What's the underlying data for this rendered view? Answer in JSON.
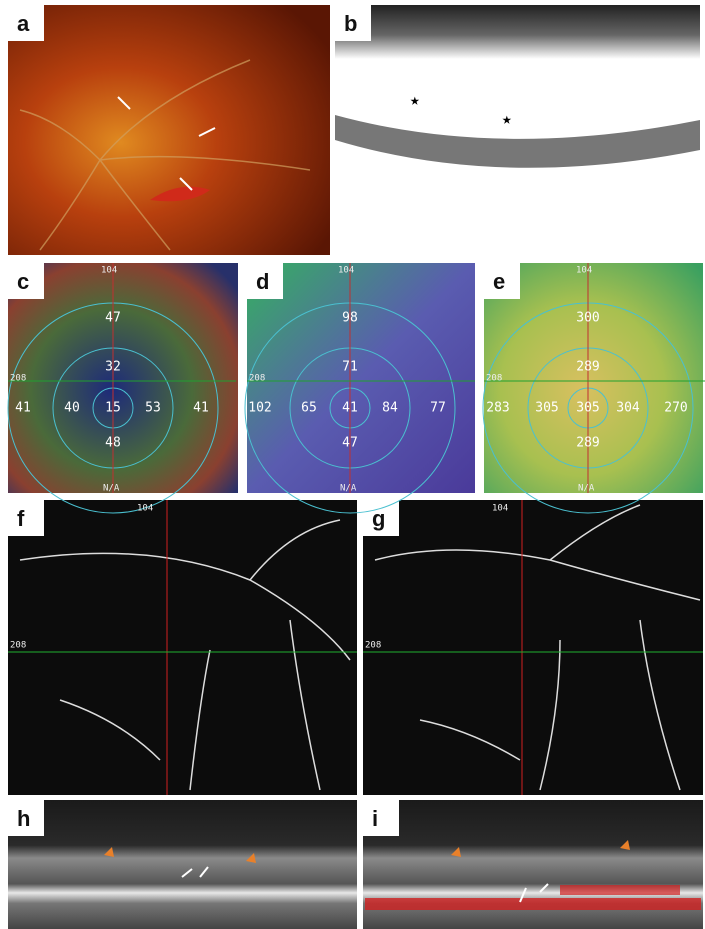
{
  "labels": [
    "a",
    "b",
    "c",
    "d",
    "e",
    "f",
    "g",
    "h",
    "i"
  ],
  "maps": [
    {
      "top": "104",
      "left": "208",
      "bottom": "N/A",
      "values": [
        47,
        32,
        41,
        40,
        15,
        53,
        41,
        48
      ]
    },
    {
      "top": "104",
      "left": "208",
      "bottom": "N/A",
      "values": [
        98,
        71,
        102,
        65,
        41,
        84,
        77,
        47
      ]
    },
    {
      "top": "104",
      "left": "208",
      "bottom": "N/A",
      "values": [
        300,
        289,
        283,
        305,
        305,
        304,
        270,
        289
      ]
    }
  ],
  "octa": [
    {
      "top": "104",
      "left": "208"
    },
    {
      "top": "104",
      "left": "208"
    }
  ]
}
